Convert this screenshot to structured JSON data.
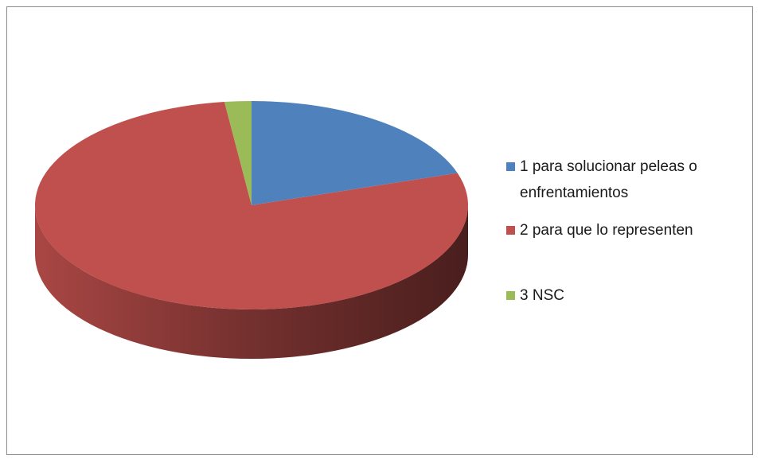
{
  "chart_data": {
    "type": "pie",
    "categories": [
      "1 para solucionar peleas o enfrentamientos",
      "2 para que lo representen",
      "3 NSC"
    ],
    "values": [
      20,
      78,
      2
    ],
    "colors": [
      "#4f81bd",
      "#c0504d",
      "#9bbb59"
    ],
    "legend": "right"
  }
}
